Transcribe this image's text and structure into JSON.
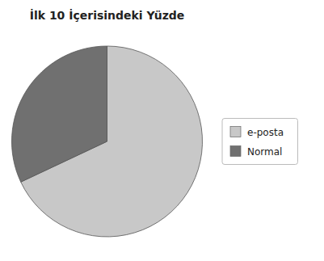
{
  "chart_data": {
    "type": "pie",
    "title": "İlk 10 İçerisindeki Yüzde",
    "categories": [
      "e-posta",
      "Normal"
    ],
    "values": [
      68,
      32
    ],
    "colors": [
      "#c8c8c8",
      "#707070"
    ],
    "legend": "right"
  }
}
